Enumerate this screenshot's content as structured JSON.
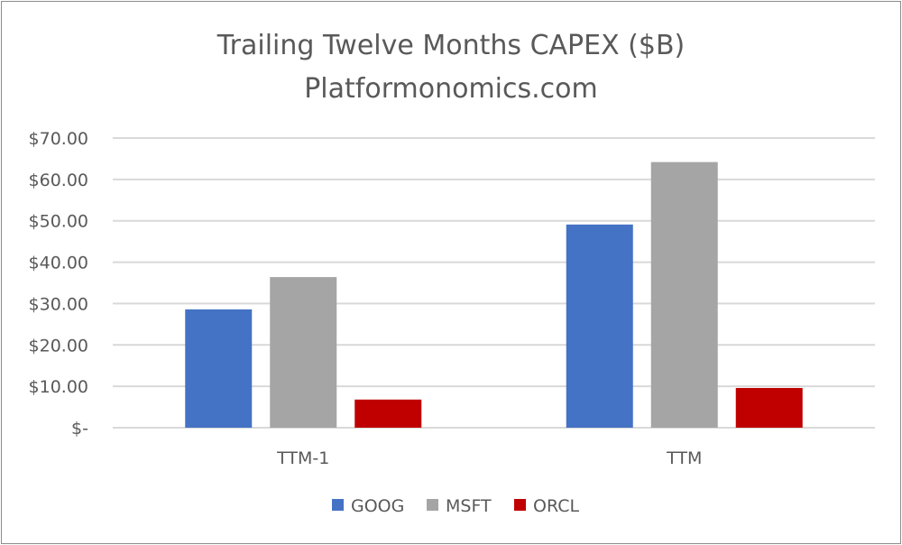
{
  "chart_data": {
    "type": "bar",
    "title": "Trailing Twelve Months CAPEX ($B)",
    "subtitle": "Platformonomics.com",
    "categories": [
      "TTM-1",
      "TTM"
    ],
    "series": [
      {
        "name": "GOOG",
        "color": "#4472c4",
        "values": [
          28.6,
          49.1
        ]
      },
      {
        "name": "MSFT",
        "color": "#a5a5a5",
        "values": [
          36.4,
          64.2
        ]
      },
      {
        "name": "ORCL",
        "color": "#c00000",
        "values": [
          6.8,
          9.6
        ]
      }
    ],
    "y_ticks": [
      "$-",
      "$10.00",
      "$20.00",
      "$30.00",
      "$40.00",
      "$50.00",
      "$60.00",
      "$70.00"
    ],
    "ylim": [
      0,
      70
    ],
    "grid": true,
    "legend": "bottom-center"
  }
}
